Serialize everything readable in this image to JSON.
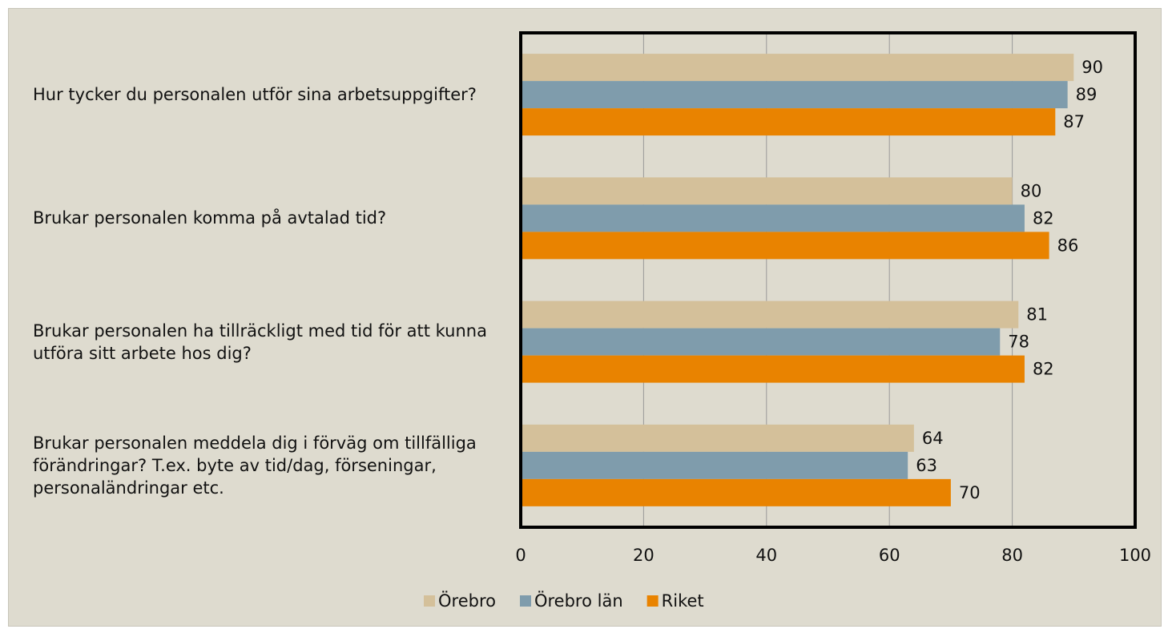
{
  "chart_data": {
    "type": "bar",
    "orientation": "horizontal",
    "categories": [
      "Hur tycker du personalen utför sina arbetsuppgifter?",
      "Brukar personalen komma på avtalad tid?",
      "Brukar personalen ha tillräckligt med tid för att kunna utföra sitt arbete hos dig?",
      "Brukar personalen meddela dig i förväg om tillfälliga förändringar? T.ex. byte av tid/dag, förseningar, personaländringar etc."
    ],
    "series": [
      {
        "name": "Örebro",
        "color": "#d4c09a",
        "values": [
          90,
          80,
          81,
          64
        ]
      },
      {
        "name": "Örebro län",
        "color": "#7f9cac",
        "values": [
          89,
          82,
          78,
          63
        ]
      },
      {
        "name": "Riket",
        "color": "#e98300",
        "values": [
          87,
          86,
          82,
          70
        ]
      }
    ],
    "xlim": [
      0,
      100
    ],
    "xticks": [
      0,
      20,
      40,
      60,
      80,
      100
    ],
    "grid": true,
    "legend": "bottom"
  }
}
